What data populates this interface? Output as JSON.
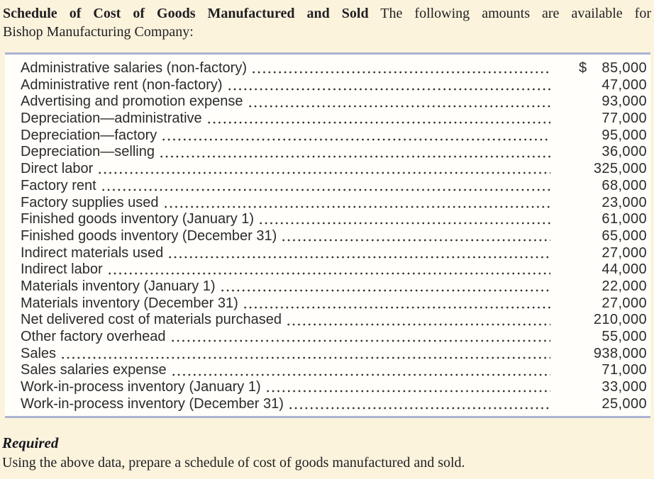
{
  "intro": {
    "title": "Schedule of Cost of Goods Manufactured and Sold",
    "line1_rest": "The following amounts are available for",
    "line2": "Bishop Manufacturing Company:"
  },
  "table": {
    "rows": [
      {
        "label": "Administrative salaries (non-factory)",
        "currency": "$",
        "amount": "85,000"
      },
      {
        "label": "Administrative rent (non-factory)",
        "currency": "",
        "amount": "47,000"
      },
      {
        "label": "Advertising and promotion expense",
        "currency": "",
        "amount": "93,000"
      },
      {
        "label": "Depreciation—administrative",
        "currency": "",
        "amount": "77,000"
      },
      {
        "label": "Depreciation—factory",
        "currency": "",
        "amount": "95,000"
      },
      {
        "label": "Depreciation—selling",
        "currency": "",
        "amount": "36,000"
      },
      {
        "label": "Direct labor",
        "currency": "",
        "amount": "325,000"
      },
      {
        "label": "Factory rent",
        "currency": "",
        "amount": "68,000"
      },
      {
        "label": "Factory supplies used",
        "currency": "",
        "amount": "23,000"
      },
      {
        "label": "Finished goods inventory (January 1)",
        "currency": "",
        "amount": "61,000"
      },
      {
        "label": "Finished goods inventory (December 31)",
        "currency": "",
        "amount": "65,000"
      },
      {
        "label": "Indirect materials used",
        "currency": "",
        "amount": "27,000"
      },
      {
        "label": "Indirect labor",
        "currency": "",
        "amount": "44,000"
      },
      {
        "label": "Materials inventory (January 1)",
        "currency": "",
        "amount": "22,000"
      },
      {
        "label": "Materials inventory (December 31)",
        "currency": "",
        "amount": "27,000"
      },
      {
        "label": "Net delivered cost of materials purchased",
        "currency": "",
        "amount": "210,000"
      },
      {
        "label": "Other factory overhead",
        "currency": "",
        "amount": "55,000"
      },
      {
        "label": "Sales",
        "currency": "",
        "amount": "938,000"
      },
      {
        "label": "Sales salaries expense",
        "currency": "",
        "amount": "71,000"
      },
      {
        "label": "Work-in-process inventory (January 1)",
        "currency": "",
        "amount": "33,000"
      },
      {
        "label": "Work-in-process inventory (December 31)",
        "currency": "",
        "amount": "25,000"
      }
    ]
  },
  "required": {
    "heading": "Required",
    "text": "Using the above data, prepare a schedule of cost of goods manufactured and sold."
  },
  "colors": {
    "background": "#FBF3DC",
    "panel_background": "#FFFEFA",
    "rule": "#ABB4D2",
    "text": "#231F20"
  }
}
